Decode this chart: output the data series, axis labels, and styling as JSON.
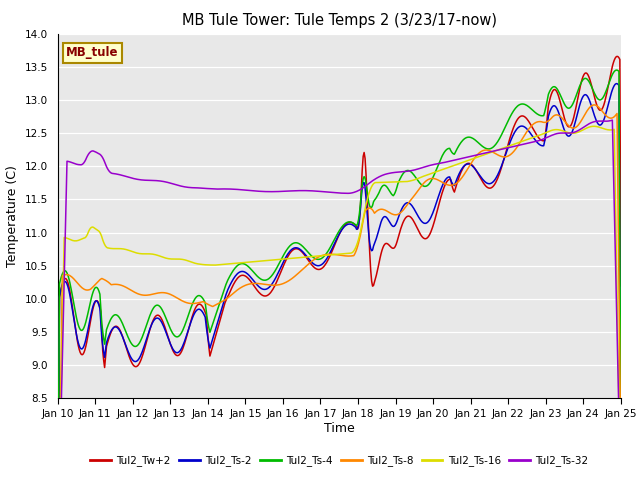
{
  "title": "MB Tule Tower: Tule Temps 2 (3/23/17-now)",
  "xlabel": "Time",
  "ylabel": "Temperature (C)",
  "ylim": [
    8.5,
    14.0
  ],
  "yticks": [
    8.5,
    9.0,
    9.5,
    10.0,
    10.5,
    11.0,
    11.5,
    12.0,
    12.5,
    13.0,
    13.5,
    14.0
  ],
  "xtick_labels": [
    "Jan 10",
    "Jan 11",
    "Jan 12",
    "Jan 13",
    "Jan 14",
    "Jan 15",
    "Jan 16",
    "Jan 17",
    "Jan 18",
    "Jan 19",
    "Jan 20",
    "Jan 21",
    "Jan 22",
    "Jan 23",
    "Jan 24",
    "Jan 25"
  ],
  "bg_color": "#e8e8e8",
  "legend_entries": [
    "Tul2_Tw+2",
    "Tul2_Ts-2",
    "Tul2_Ts-4",
    "Tul2_Ts-8",
    "Tul2_Ts-16",
    "Tul2_Ts-32"
  ],
  "line_colors": [
    "#cc0000",
    "#0000cc",
    "#00bb00",
    "#ff8800",
    "#dddd00",
    "#9900cc"
  ],
  "inset_label": "MB_tule",
  "inset_bg": "#ffffcc",
  "inset_border": "#aa8800",
  "inset_text_color": "#880000"
}
